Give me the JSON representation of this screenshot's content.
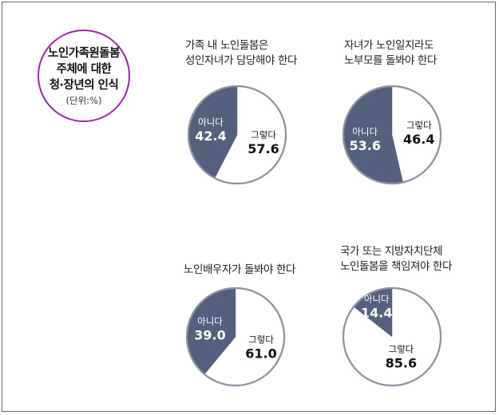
{
  "header": {
    "lines": [
      "노인가족원돌봄",
      "주체에 대한",
      "청·장년의 인식"
    ],
    "unit": "(단위:%)"
  },
  "colors": {
    "no": "#54607e",
    "yes": "#ffffff",
    "border": "#8d93a3"
  },
  "chart_data": [
    {
      "type": "pie",
      "title_lines": [
        "가족 내 노인돌봄은",
        "성인자녀가 담당해야 한다"
      ],
      "slices": [
        {
          "label": "그렇다",
          "value": 57.6,
          "display": "57.6"
        },
        {
          "label": "아니다",
          "value": 42.4,
          "display": "42.4"
        }
      ]
    },
    {
      "type": "pie",
      "title_lines": [
        "자녀가 노인일지라도",
        "노부모를 돌봐야 한다"
      ],
      "slices": [
        {
          "label": "그렇다",
          "value": 46.4,
          "display": "46.4"
        },
        {
          "label": "아니다",
          "value": 53.6,
          "display": "53.6"
        }
      ]
    },
    {
      "type": "pie",
      "title_lines": [
        "노인배우자가 돌봐야 한다"
      ],
      "slices": [
        {
          "label": "그렇다",
          "value": 61.0,
          "display": "61.0"
        },
        {
          "label": "아니다",
          "value": 39.0,
          "display": "39.0"
        }
      ]
    },
    {
      "type": "pie",
      "title_lines": [
        "국가 또는 지방자치단체",
        "노인돌봄을 책임져야 한다"
      ],
      "slices": [
        {
          "label": "그렇다",
          "value": 85.6,
          "display": "85.6"
        },
        {
          "label": "아니다",
          "value": 14.4,
          "display": "14.4"
        }
      ]
    }
  ]
}
